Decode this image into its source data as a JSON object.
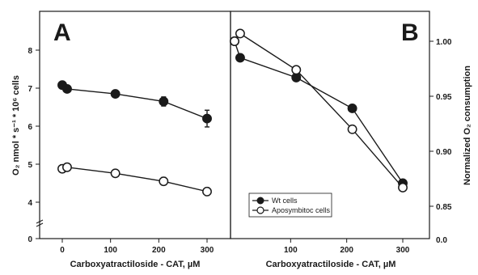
{
  "chart_data": [
    {
      "type": "line",
      "panel_label": "A",
      "xlabel": "Carboxyatractiloside - CAT, µM",
      "ylabel": "O₂ nmol * s⁻¹ * 10⁶ cells",
      "xlim": [
        -25,
        335
      ],
      "ylim": [
        0,
        8
      ],
      "x_ticks": [
        0,
        100,
        200,
        300
      ],
      "x_tick_labels": [
        "0",
        "100",
        "200",
        "300"
      ],
      "y_ticks": [
        0,
        4,
        5,
        6,
        7,
        8
      ],
      "y_tick_labels": [
        "0",
        "4",
        "5",
        "6",
        "7",
        "8"
      ],
      "y_scale": "broken: 0 to 4 compressed",
      "grid": false,
      "series": [
        {
          "marker": "filled-circle",
          "x": [
            0,
            10,
            110,
            210,
            300
          ],
          "y": [
            7.08,
            6.98,
            6.85,
            6.65,
            6.2
          ],
          "err": [
            0.08,
            0.05,
            0.07,
            0.12,
            0.22
          ]
        },
        {
          "marker": "open-circle",
          "x": [
            0,
            10,
            110,
            210,
            300
          ],
          "y": [
            4.88,
            4.92,
            4.76,
            4.55,
            4.28
          ],
          "err": [
            0.1,
            0.06,
            0.07,
            0.1,
            0.1
          ]
        }
      ]
    },
    {
      "type": "line",
      "panel_label": "B",
      "xlabel": "Carboxyatractiloside - CAT, µM",
      "ylabel": "Normalized O₂ consumption",
      "xlim": [
        -20,
        335
      ],
      "ylim": [
        0.85,
        1.022
      ],
      "x_ticks": [
        100,
        200,
        300
      ],
      "x_tick_labels": [
        "100",
        "200",
        "300"
      ],
      "y_ticks": [
        0.85,
        0.9,
        0.95,
        1.0
      ],
      "y_tick_labels": [
        "0.85",
        "0.90",
        "0.95",
        "1.00"
      ],
      "y_axis_bottom_label": "0.0",
      "y_axis_side": "right",
      "grid": false,
      "legend_position": "bottom-left",
      "series": [
        {
          "name": "Wt cells",
          "marker": "filled-circle",
          "x": [
            0,
            10,
            110,
            210,
            300
          ],
          "y": [
            1.0,
            0.985,
            0.967,
            0.939,
            0.871
          ]
        },
        {
          "name": "Aposymbitoc cells",
          "marker": "open-circle",
          "x": [
            0,
            10,
            110,
            210,
            300
          ],
          "y": [
            1.0,
            1.007,
            0.974,
            0.92,
            0.867
          ]
        }
      ]
    }
  ]
}
